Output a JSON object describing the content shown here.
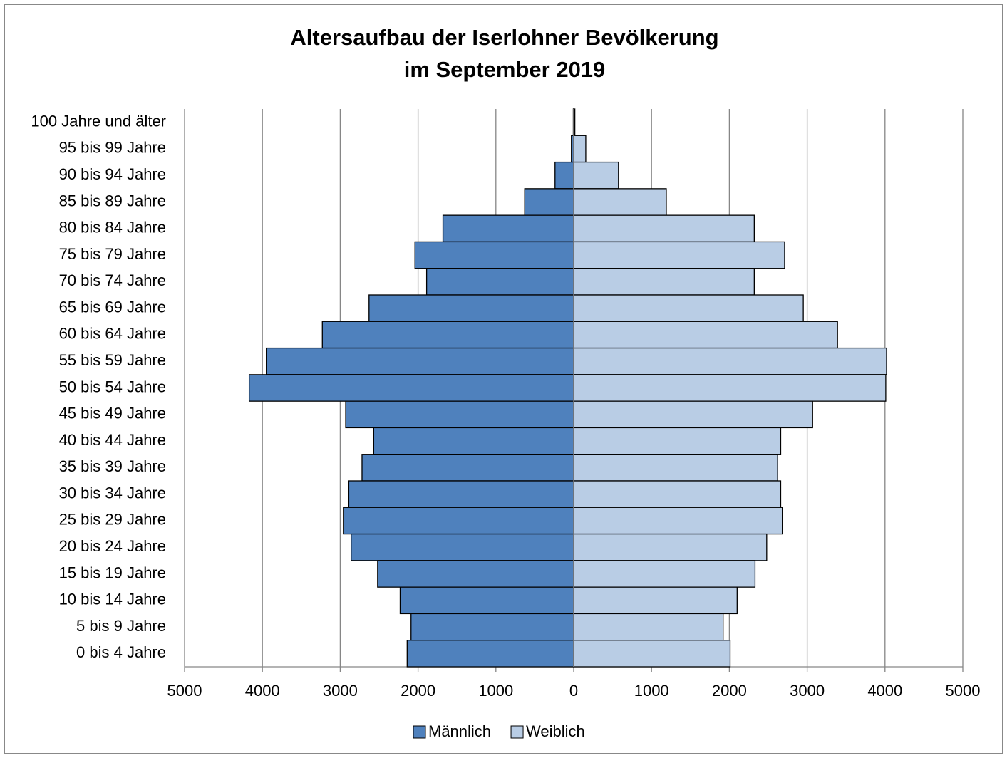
{
  "chart_data": {
    "type": "pyramid",
    "title": [
      "Altersaufbau der Iserlohner Bevölkerung",
      "im September 2019"
    ],
    "categories": [
      "100 Jahre und älter",
      "95 bis 99 Jahre",
      "90 bis 94 Jahre",
      "85 bis 89 Jahre",
      "80 bis 84 Jahre",
      "75 bis 79 Jahre",
      "70 bis 74 Jahre",
      "65 bis 69 Jahre",
      "60 bis 64 Jahre",
      "55 bis 59 Jahre",
      "50 bis 54 Jahre",
      "45 bis 49 Jahre",
      "40 bis 44 Jahre",
      "35 bis 39 Jahre",
      "30 bis 34 Jahre",
      "25 bis 29 Jahre",
      "20 bis 24 Jahre",
      "15 bis 19 Jahre",
      "10 bis 14 Jahre",
      "5 bis 9 Jahre",
      "0 bis 4 Jahre"
    ],
    "series": [
      {
        "name": "Männlich",
        "color": "#4f81bd",
        "values": [
          -5,
          -30,
          -240,
          -630,
          -1680,
          -2040,
          -1890,
          -2630,
          -3230,
          -3950,
          -4170,
          -2930,
          -2570,
          -2720,
          -2890,
          -2960,
          -2860,
          -2520,
          -2230,
          -2090,
          -2140
        ]
      },
      {
        "name": "Weiblich",
        "color": "#b9cde5",
        "values": [
          15,
          155,
          575,
          1190,
          2320,
          2710,
          2320,
          2950,
          3390,
          4020,
          4010,
          3070,
          2660,
          2620,
          2660,
          2680,
          2480,
          2330,
          2100,
          1920,
          2010
        ]
      }
    ],
    "xlim": [
      -5000,
      5000
    ],
    "xticks": [
      {
        "value": -5000,
        "label": "5000"
      },
      {
        "value": -4000,
        "label": "4000"
      },
      {
        "value": -3000,
        "label": "3000"
      },
      {
        "value": -2000,
        "label": "2000"
      },
      {
        "value": -1000,
        "label": "1000"
      },
      0,
      1000,
      2000,
      3000,
      4000,
      5000
    ],
    "grid": true,
    "legend": "bottom"
  }
}
